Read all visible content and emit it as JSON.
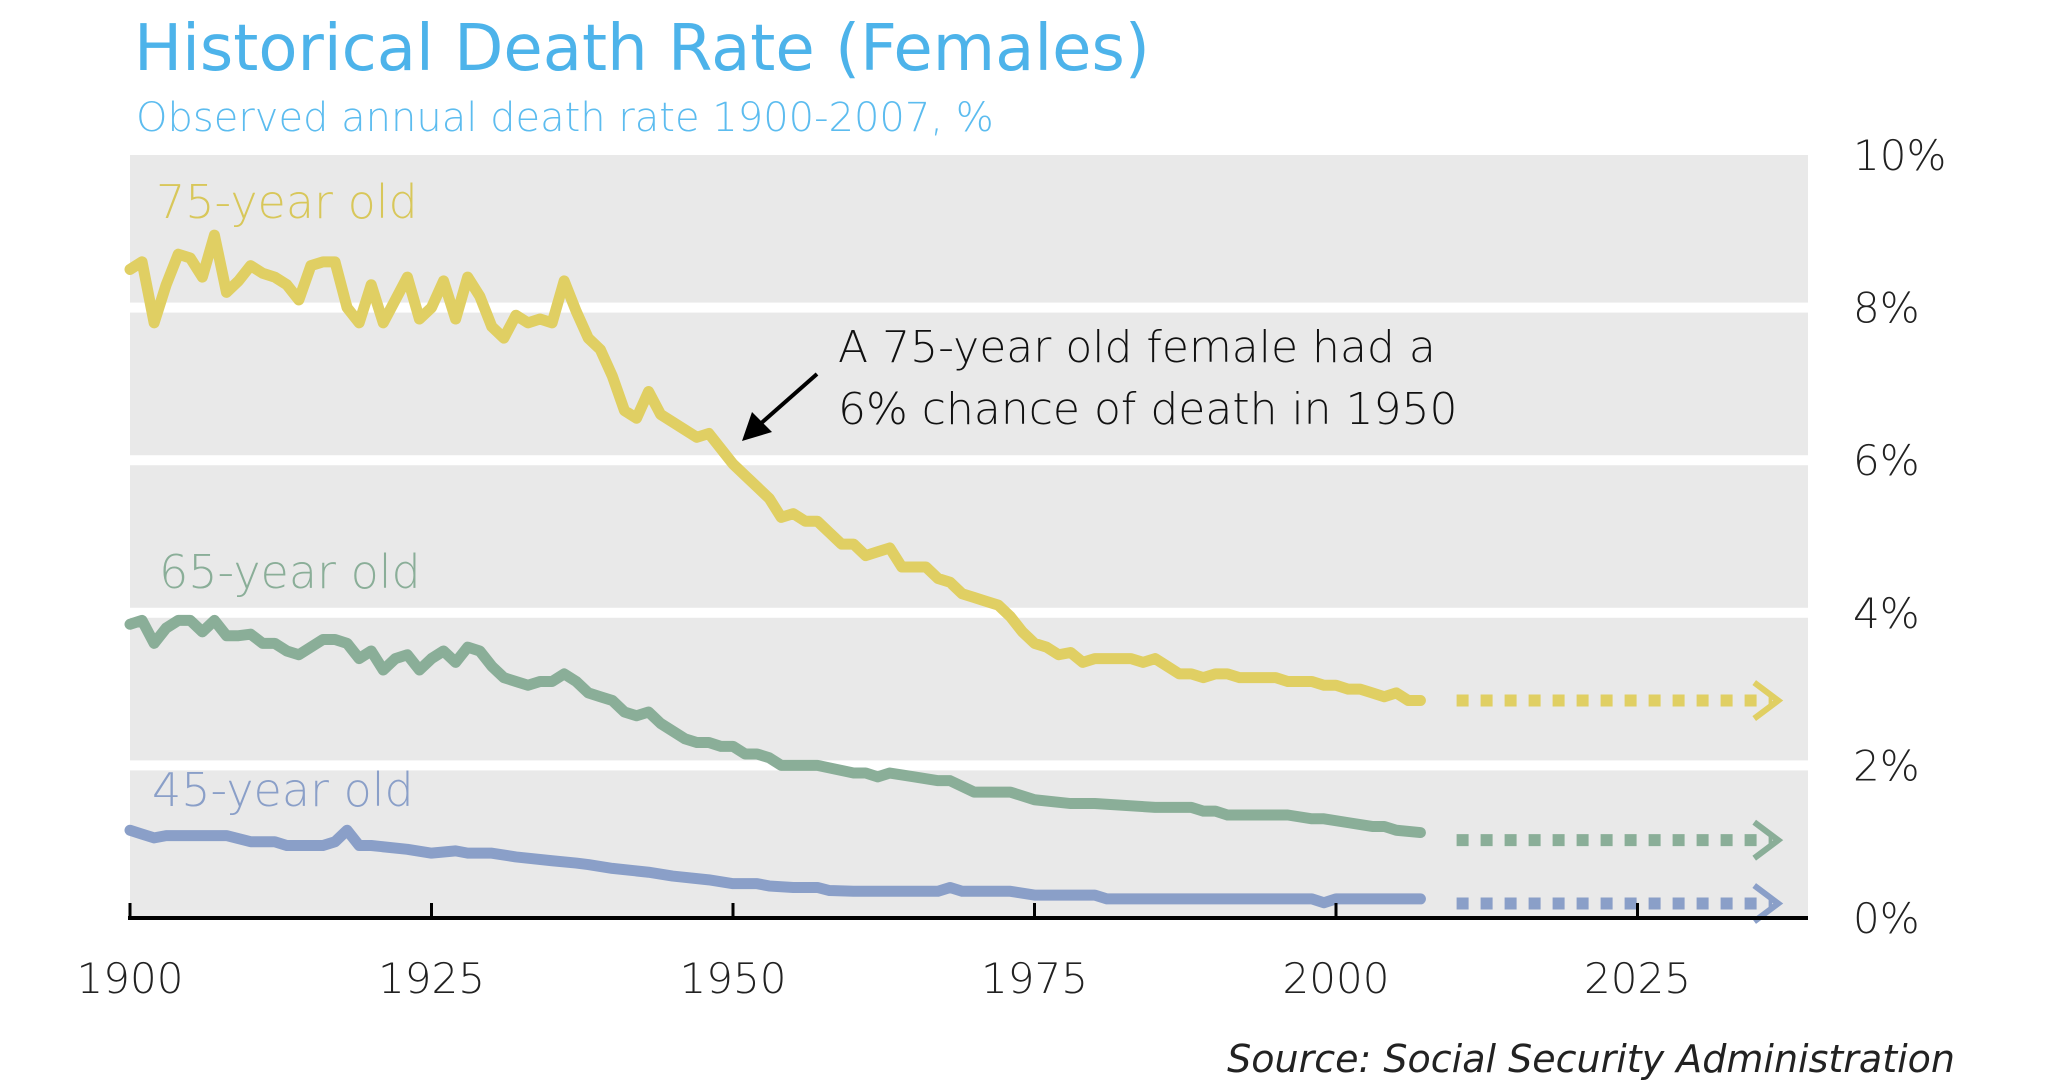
{
  "chart_data": {
    "type": "line",
    "title": "Historical Death Rate (Females)",
    "subtitle": "Observed annual death rate 1900-2007,  %",
    "xlabel": "",
    "ylabel": "",
    "xlim": [
      1900,
      2038
    ],
    "ylim": [
      0,
      10
    ],
    "x_ticks": [
      "1900",
      "1925",
      "1950",
      "1975",
      "2000",
      "2025"
    ],
    "x_tick_values": [
      1900,
      1925,
      1950,
      1975,
      2000,
      2025
    ],
    "y_ticks": [
      "0%",
      "2%",
      "4%",
      "6%",
      "8%",
      "10%"
    ],
    "y_tick_values": [
      0,
      2,
      4,
      6,
      8,
      10
    ],
    "grid": true,
    "y_axis_side": "right",
    "background_color": "#e9e9e9",
    "series": [
      {
        "name": "75-year old",
        "color": "#e0cf63",
        "x": [
          1900,
          1901,
          1902,
          1903,
          1904,
          1905,
          1906,
          1907,
          1908,
          1909,
          1910,
          1911,
          1912,
          1913,
          1914,
          1915,
          1916,
          1917,
          1918,
          1919,
          1920,
          1921,
          1922,
          1923,
          1924,
          1925,
          1926,
          1927,
          1928,
          1929,
          1930,
          1931,
          1932,
          1933,
          1934,
          1935,
          1936,
          1937,
          1938,
          1939,
          1940,
          1941,
          1942,
          1943,
          1944,
          1945,
          1946,
          1947,
          1948,
          1949,
          1950,
          1951,
          1952,
          1953,
          1954,
          1955,
          1956,
          1957,
          1958,
          1959,
          1960,
          1961,
          1962,
          1963,
          1964,
          1965,
          1966,
          1967,
          1968,
          1969,
          1970,
          1971,
          1972,
          1973,
          1974,
          1975,
          1976,
          1977,
          1978,
          1979,
          1980,
          1981,
          1982,
          1983,
          1984,
          1985,
          1986,
          1987,
          1988,
          1989,
          1990,
          1991,
          1992,
          1993,
          1994,
          1995,
          1996,
          1997,
          1998,
          1999,
          2000,
          2001,
          2002,
          2003,
          2004,
          2005,
          2006,
          2007
        ],
        "values": [
          8.5,
          8.6,
          7.8,
          8.3,
          8.7,
          8.65,
          8.4,
          8.95,
          8.2,
          8.35,
          8.55,
          8.45,
          8.4,
          8.3,
          8.1,
          8.55,
          8.6,
          8.6,
          8.0,
          7.8,
          8.3,
          7.8,
          8.1,
          8.4,
          7.85,
          8.0,
          8.35,
          7.85,
          8.4,
          8.15,
          7.75,
          7.6,
          7.9,
          7.8,
          7.85,
          7.8,
          8.35,
          7.95,
          7.6,
          7.45,
          7.1,
          6.65,
          6.55,
          6.9,
          6.6,
          6.5,
          6.4,
          6.3,
          6.35,
          6.15,
          5.95,
          5.8,
          5.65,
          5.5,
          5.25,
          5.3,
          5.2,
          5.2,
          5.05,
          4.9,
          4.9,
          4.75,
          4.8,
          4.85,
          4.6,
          4.6,
          4.6,
          4.45,
          4.4,
          4.25,
          4.2,
          4.15,
          4.1,
          3.95,
          3.75,
          3.6,
          3.55,
          3.45,
          3.48,
          3.35,
          3.4,
          3.4,
          3.4,
          3.4,
          3.35,
          3.4,
          3.3,
          3.2,
          3.2,
          3.15,
          3.2,
          3.2,
          3.15,
          3.15,
          3.15,
          3.15,
          3.1,
          3.1,
          3.1,
          3.05,
          3.05,
          3.0,
          3.0,
          2.95,
          2.9,
          2.95,
          2.85,
          2.85
        ],
        "projection": {
          "x": [
            2010,
            2037
          ],
          "values": [
            2.85,
            2.85
          ]
        }
      },
      {
        "name": "65-year old",
        "color": "#8aae98",
        "x": [
          1900,
          1901,
          1902,
          1903,
          1904,
          1905,
          1906,
          1907,
          1908,
          1909,
          1910,
          1911,
          1912,
          1913,
          1914,
          1915,
          1916,
          1917,
          1918,
          1919,
          1920,
          1921,
          1922,
          1923,
          1924,
          1925,
          1926,
          1927,
          1928,
          1929,
          1930,
          1931,
          1932,
          1933,
          1934,
          1935,
          1936,
          1937,
          1938,
          1939,
          1940,
          1941,
          1942,
          1943,
          1944,
          1945,
          1946,
          1947,
          1948,
          1949,
          1950,
          1951,
          1952,
          1953,
          1954,
          1957,
          1960,
          1961,
          1962,
          1963,
          1965,
          1967,
          1968,
          1970,
          1973,
          1975,
          1978,
          1979,
          1980,
          1985,
          1986,
          1988,
          1989,
          1990,
          1991,
          1995,
          1996,
          1998,
          1999,
          2001,
          2003,
          2004,
          2005,
          2007
        ],
        "values": [
          3.85,
          3.9,
          3.6,
          3.8,
          3.9,
          3.9,
          3.75,
          3.9,
          3.7,
          3.7,
          3.72,
          3.6,
          3.6,
          3.5,
          3.45,
          3.55,
          3.65,
          3.65,
          3.6,
          3.4,
          3.5,
          3.25,
          3.4,
          3.45,
          3.25,
          3.4,
          3.5,
          3.35,
          3.55,
          3.5,
          3.3,
          3.15,
          3.1,
          3.05,
          3.1,
          3.1,
          3.2,
          3.1,
          2.95,
          2.9,
          2.85,
          2.7,
          2.65,
          2.7,
          2.55,
          2.45,
          2.35,
          2.3,
          2.3,
          2.25,
          2.25,
          2.15,
          2.15,
          2.1,
          2.0,
          2.0,
          1.9,
          1.9,
          1.85,
          1.9,
          1.85,
          1.8,
          1.8,
          1.65,
          1.65,
          1.55,
          1.5,
          1.5,
          1.5,
          1.45,
          1.45,
          1.45,
          1.4,
          1.4,
          1.35,
          1.35,
          1.35,
          1.3,
          1.3,
          1.25,
          1.2,
          1.2,
          1.15,
          1.12
        ],
        "projection": {
          "x": [
            2010,
            2037
          ],
          "values": [
            1.02,
            1.02
          ]
        }
      },
      {
        "name": "45-year old",
        "color": "#8a9fc8",
        "x": [
          1900,
          1901,
          1902,
          1903,
          1908,
          1910,
          1912,
          1913,
          1916,
          1917,
          1918,
          1919,
          1920,
          1923,
          1925,
          1927,
          1928,
          1930,
          1932,
          1935,
          1937,
          1938,
          1940,
          1943,
          1945,
          1948,
          1950,
          1952,
          1953,
          1955,
          1957,
          1958,
          1960,
          1967,
          1968,
          1969,
          1970,
          1973,
          1975,
          1980,
          1981,
          1995,
          1998,
          1999,
          2000,
          2007
        ],
        "values": [
          1.15,
          1.1,
          1.05,
          1.08,
          1.08,
          1.0,
          1.0,
          0.95,
          0.95,
          1.0,
          1.15,
          0.95,
          0.95,
          0.9,
          0.85,
          0.88,
          0.85,
          0.85,
          0.8,
          0.75,
          0.72,
          0.7,
          0.65,
          0.6,
          0.55,
          0.5,
          0.45,
          0.45,
          0.42,
          0.4,
          0.4,
          0.36,
          0.35,
          0.35,
          0.4,
          0.35,
          0.35,
          0.35,
          0.3,
          0.3,
          0.25,
          0.25,
          0.25,
          0.2,
          0.25,
          0.25
        ],
        "projection": {
          "x": [
            2010,
            2037
          ],
          "values": [
            0.19,
            0.19
          ]
        }
      }
    ],
    "annotation": {
      "line1": "A 75-year old female had a",
      "line2": "6% chance of death in 1950"
    },
    "source": "Source: Social Security Administration"
  }
}
